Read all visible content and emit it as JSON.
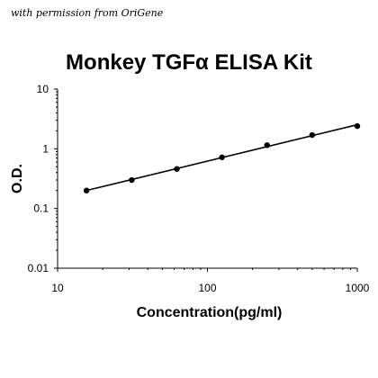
{
  "caption": "with permission from OriGene",
  "chart_data": {
    "type": "scatter",
    "title": "Monkey TGFα ELISA Kit",
    "xlabel": "Concentration(pg/ml)",
    "ylabel": "O.D.",
    "xscale": "log",
    "yscale": "log",
    "xlim": [
      10,
      1000
    ],
    "ylim": [
      0.01,
      10
    ],
    "x_ticks": [
      "10",
      "100",
      "1000"
    ],
    "y_ticks": [
      "0.01",
      "0.1",
      "1",
      "10"
    ],
    "grid": false,
    "legend": "none",
    "series": [
      {
        "x": [
          15.6,
          31.25,
          62.5,
          125,
          250,
          500,
          1000
        ],
        "y": [
          0.2,
          0.3,
          0.46,
          0.72,
          1.15,
          1.7,
          2.4
        ]
      }
    ],
    "trendline": "power fit through points",
    "colors": {
      "marker": "#000000",
      "line": "#000000"
    }
  }
}
